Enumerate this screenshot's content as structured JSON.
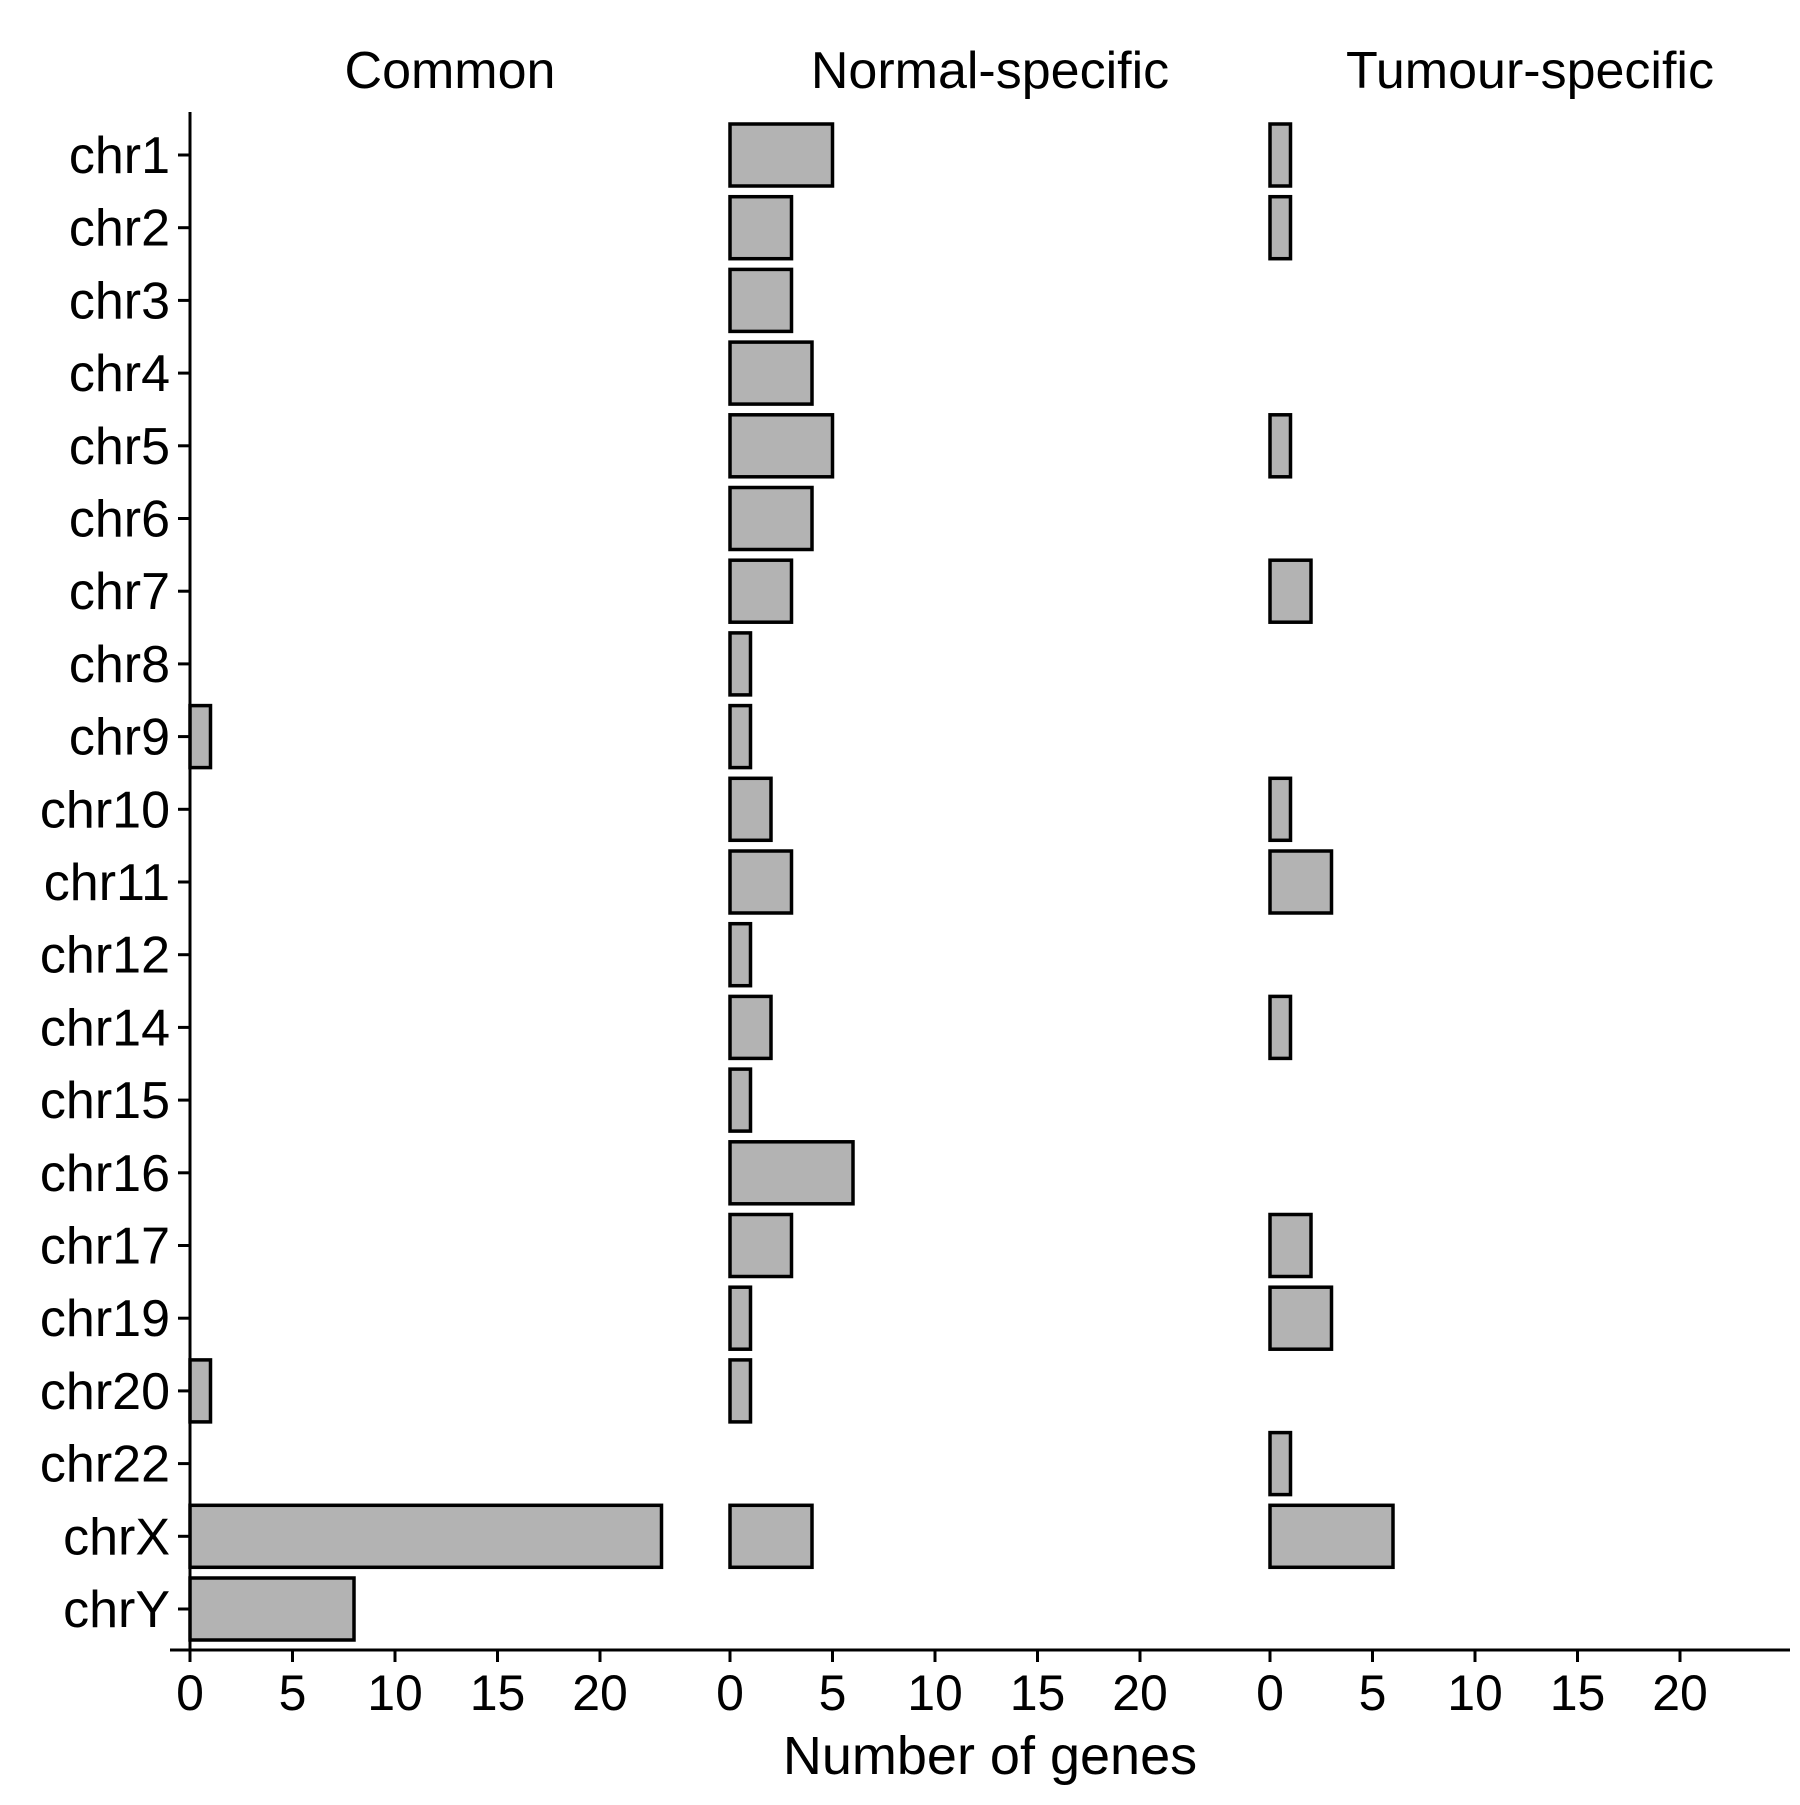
{
  "chart_data": {
    "type": "bar",
    "orientation": "horizontal",
    "facets": [
      "Common",
      "Normal-specific",
      "Tumour-specific"
    ],
    "categories": [
      "chr1",
      "chr2",
      "chr3",
      "chr4",
      "chr5",
      "chr6",
      "chr7",
      "chr8",
      "chr9",
      "chr10",
      "chr11",
      "chr12",
      "chr14",
      "chr15",
      "chr16",
      "chr17",
      "chr19",
      "chr20",
      "chr22",
      "chrX",
      "chrY"
    ],
    "series": [
      {
        "facet": "Common",
        "values": [
          0,
          0,
          0,
          0,
          0,
          0,
          0,
          0,
          1,
          0,
          0,
          0,
          0,
          0,
          0,
          0,
          0,
          1,
          0,
          23,
          8
        ]
      },
      {
        "facet": "Normal-specific",
        "values": [
          5,
          3,
          3,
          4,
          5,
          4,
          3,
          1,
          1,
          2,
          3,
          1,
          2,
          1,
          6,
          3,
          1,
          1,
          0,
          4,
          0
        ]
      },
      {
        "facet": "Tumour-specific",
        "values": [
          1,
          1,
          0,
          0,
          1,
          0,
          2,
          0,
          0,
          1,
          3,
          0,
          1,
          0,
          0,
          2,
          3,
          0,
          1,
          6,
          0
        ]
      }
    ],
    "xlabel": "Number of genes",
    "ylabel": "",
    "xlim": [
      0,
      24
    ],
    "xticks": [
      0,
      5,
      10,
      15,
      20
    ],
    "xtick_labels": [
      "0",
      "5",
      "10",
      "15",
      "20"
    ],
    "grid": false,
    "legend": "none",
    "colors": {
      "bar_fill": "#b3b3b3",
      "bar_stroke": "#000000",
      "axis": "#000000"
    }
  }
}
